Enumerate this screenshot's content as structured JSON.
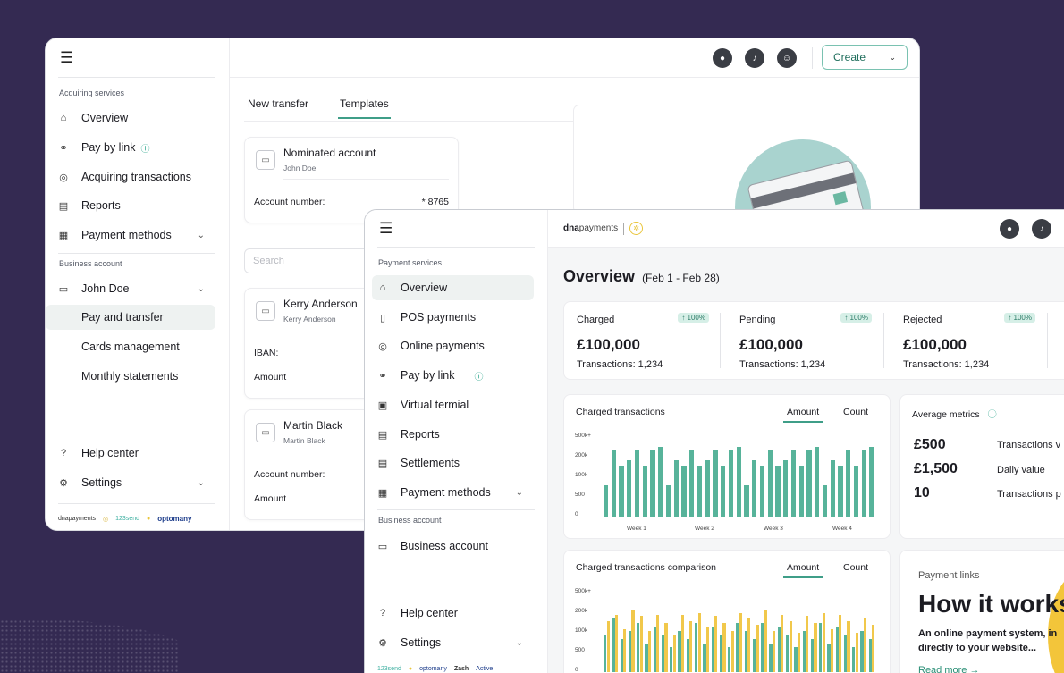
{
  "back": {
    "sidebar": {
      "section1": "Acquiring services",
      "items1": [
        {
          "label": "Overview",
          "icon": "home-icon"
        },
        {
          "label": "Pay by link",
          "icon": "link-icon"
        },
        {
          "label": "Acquiring transactions",
          "icon": "target-icon"
        },
        {
          "label": "Reports",
          "icon": "report-icon"
        },
        {
          "label": "Payment methods",
          "icon": "wallet-icon"
        }
      ],
      "section2": "Business account",
      "account": "John Doe",
      "subitems": [
        "Pay and transfer",
        "Cards management",
        "Monthly statements"
      ],
      "help": "Help center",
      "settings": "Settings",
      "logos": [
        "dnapayments",
        "123send",
        "optomany"
      ]
    },
    "topbar": {
      "create": "Create"
    },
    "tabs": [
      "New transfer",
      "Templates"
    ],
    "nominated": {
      "title": "Nominated account",
      "owner": "John Doe",
      "acc_label": "Account number:",
      "acc_value": "* 8765"
    },
    "search_placeholder": "Search",
    "kerry": {
      "name": "Kerry Anderson",
      "sub": "Kerry Anderson",
      "iban": "IBAN:",
      "amount": "Amount"
    },
    "martin": {
      "name": "Martin Black",
      "sub": "Martin Black",
      "acc": "Account number:",
      "amount": "Amount"
    }
  },
  "front": {
    "sidebar": {
      "section1": "Payment services",
      "items": [
        {
          "label": "Overview",
          "icon": "home-icon"
        },
        {
          "label": "POS payments",
          "icon": "pos-icon"
        },
        {
          "label": "Online payments",
          "icon": "globe-icon"
        },
        {
          "label": "Pay by link",
          "icon": "link-icon"
        },
        {
          "label": "Virtual termial",
          "icon": "terminal-icon"
        },
        {
          "label": "Reports",
          "icon": "report-icon"
        },
        {
          "label": "Settlements",
          "icon": "document-icon"
        },
        {
          "label": "Payment methods",
          "icon": "wallet-icon"
        }
      ],
      "section2": "Business account",
      "business": "Business account",
      "help": "Help center",
      "settings": "Settings",
      "logos": [
        "123send",
        "optomany",
        "Zash",
        "Active"
      ]
    },
    "logo": {
      "bold": "dna",
      "thin": "payments"
    },
    "overview": {
      "title": "Overview",
      "range": "(Feb 1 - Feb 28)"
    },
    "stats": [
      {
        "label": "Charged",
        "badge": "↑ 100%",
        "amount": "£100,000",
        "tx": "Transactions: 1,234"
      },
      {
        "label": "Pending",
        "badge": "↑ 100%",
        "amount": "£100,000",
        "tx": "Transactions: 1,234"
      },
      {
        "label": "Rejected",
        "badge": "↑ 100%",
        "amount": "£100,000",
        "tx": "Transactions: 1,234"
      }
    ],
    "chart1": {
      "title": "Charged transactions",
      "seg_amount": "Amount",
      "seg_count": "Count"
    },
    "chart2": {
      "title": "Charged transactions comparison",
      "seg_amount": "Amount",
      "seg_count": "Count"
    },
    "avg": {
      "title": "Average metrics",
      "rows": [
        {
          "value": "£500",
          "label": "Transactions v"
        },
        {
          "value": "£1,500",
          "label": "Daily value"
        },
        {
          "value": "10",
          "label": "Transactions p"
        }
      ]
    },
    "paylinks": {
      "label": "Payment links",
      "head": "How it works",
      "body1": "An online payment system, in",
      "body2": "directly to your website...",
      "link": "Read more →"
    }
  },
  "chart_data": [
    {
      "type": "bar",
      "title": "Charged transactions",
      "yticks": [
        "500k+",
        "200k",
        "100k",
        "500",
        "0"
      ],
      "xticks": [
        "Week 1",
        "Week 2",
        "Week 3",
        "Week 4"
      ],
      "series": [
        {
          "values": [
            0.38,
            0.8,
            0.62,
            0.68,
            0.8,
            0.62,
            0.8,
            0.85,
            0.38,
            0.68,
            0.62,
            0.8,
            0.62,
            0.68,
            0.8,
            0.62,
            0.8,
            0.85,
            0.38,
            0.68,
            0.62,
            0.8,
            0.62,
            0.68,
            0.8,
            0.62,
            0.8,
            0.85,
            0.38,
            0.68,
            0.62,
            0.8,
            0.62,
            0.8,
            0.85
          ]
        }
      ]
    },
    {
      "type": "bar",
      "title": "Charged transactions comparison",
      "yticks": [
        "500k+",
        "200k",
        "100k",
        "500",
        "0"
      ],
      "series": [
        {
          "values": [
            0.45,
            0.65,
            0.4,
            0.5,
            0.6,
            0.35,
            0.55,
            0.45,
            0.3,
            0.5,
            0.4,
            0.6,
            0.35,
            0.55,
            0.45,
            0.3,
            0.6,
            0.5,
            0.4,
            0.6,
            0.35,
            0.55,
            0.45,
            0.3,
            0.5,
            0.4,
            0.6,
            0.35,
            0.55,
            0.45,
            0.3,
            0.5,
            0.4
          ]
        },
        {
          "values": [
            0.62,
            0.7,
            0.52,
            0.75,
            0.68,
            0.5,
            0.7,
            0.6,
            0.45,
            0.7,
            0.62,
            0.72,
            0.55,
            0.68,
            0.6,
            0.5,
            0.72,
            0.65,
            0.58,
            0.75,
            0.5,
            0.7,
            0.62,
            0.48,
            0.68,
            0.6,
            0.72,
            0.52,
            0.7,
            0.62,
            0.48,
            0.65,
            0.58
          ]
        }
      ]
    }
  ]
}
